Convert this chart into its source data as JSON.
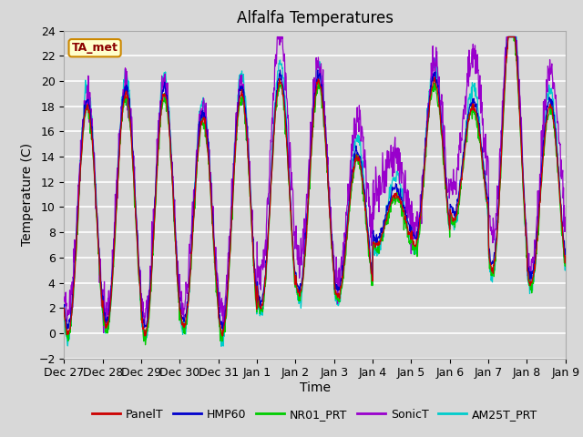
{
  "title": "Alfalfa Temperatures",
  "xlabel": "Time",
  "ylabel": "Temperature (C)",
  "ylim": [
    -2,
    24
  ],
  "yticks": [
    -2,
    0,
    2,
    4,
    6,
    8,
    10,
    12,
    14,
    16,
    18,
    20,
    22,
    24
  ],
  "xtick_labels": [
    "Dec 27",
    "Dec 28",
    "Dec 29",
    "Dec 30",
    "Dec 31",
    "Jan 1",
    "Jan 2",
    "Jan 3",
    "Jan 4",
    "Jan 5",
    "Jan 6",
    "Jan 7",
    "Jan 8",
    "Jan 9"
  ],
  "colors": {
    "PanelT": "#cc0000",
    "HMP60": "#0000cc",
    "NR01_PRT": "#00cc00",
    "SonicT": "#9900cc",
    "AM25T_PRT": "#00cccc"
  },
  "legend_label": "TA_met",
  "fig_bg": "#d8d8d8",
  "title_fontsize": 12,
  "axis_fontsize": 10,
  "tick_fontsize": 9,
  "n_days": 13,
  "points_per_day": 96
}
